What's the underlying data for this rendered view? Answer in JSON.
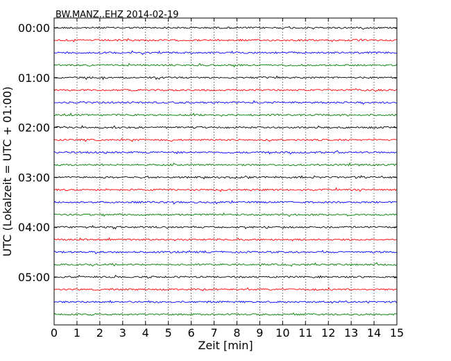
{
  "chart_data": {
    "type": "line",
    "title": "BW.MANZ..EHZ 2014-02-19",
    "xlabel": "Zeit  [min]",
    "ylabel": "UTC (Lokalzeit = UTC + 01:00)",
    "xlim": [
      0,
      15
    ],
    "x_ticks": [
      "0",
      "1",
      "2",
      "3",
      "4",
      "5",
      "6",
      "7",
      "8",
      "9",
      "10",
      "11",
      "12",
      "13",
      "14",
      "15"
    ],
    "y_ticks": [
      "00:00",
      "01:00",
      "02:00",
      "03:00",
      "04:00",
      "05:00"
    ],
    "grid": "vertical dotted",
    "trace_interval_min": 15,
    "trace_colors": [
      "#000000",
      "#ff0000",
      "#0000ff",
      "#008000"
    ],
    "traces_count": 24
  }
}
